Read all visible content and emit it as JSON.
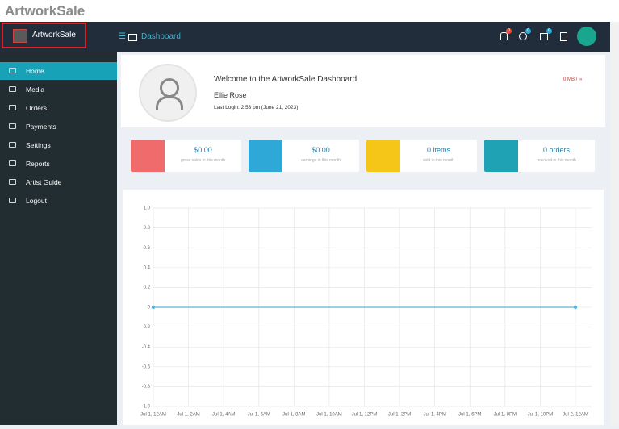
{
  "window_title": "ArtworkSale",
  "navbar": {
    "brand": "ArtworkSale",
    "breadcrumb": "Dashboard",
    "badges": [
      "0",
      "0",
      "0"
    ]
  },
  "sidebar": {
    "items": [
      "Home",
      "Media",
      "Orders",
      "Payments",
      "Settings",
      "Reports",
      "Artist Guide",
      "Logout"
    ]
  },
  "welcome": {
    "heading": "Welcome to the ArtworkSale Dashboard",
    "name": "Ellie Rose",
    "last_login": "Last Login: 2:53 pm (June 21, 2023)",
    "storage": "0 MB / ∞"
  },
  "stats": [
    {
      "value": "$0.00",
      "label": "gross sales in this month",
      "color": "#f06b6b"
    },
    {
      "value": "$0.00",
      "label": "earnings in this month",
      "color": "#2ea8d6"
    },
    {
      "value": "0 items",
      "label": "sold in this month",
      "color": "#f5c518"
    },
    {
      "value": "0 orders",
      "label": "received in this month",
      "color": "#1fa2b3"
    }
  ],
  "chart_data": {
    "type": "line",
    "categories": [
      "Jul 1, 12AM",
      "Jul 1, 2AM",
      "Jul 1, 4AM",
      "Jul 1, 6AM",
      "Jul 1, 8AM",
      "Jul 1, 10AM",
      "Jul 1, 12PM",
      "Jul 1, 2PM",
      "Jul 1, 4PM",
      "Jul 1, 6PM",
      "Jul 1, 8PM",
      "Jul 1, 10PM",
      "Jul 2, 12AM"
    ],
    "series": [
      {
        "color": "#5bb5d8",
        "values": [
          0,
          0,
          0,
          0,
          0,
          0,
          0,
          0,
          0,
          0,
          0,
          0,
          0
        ]
      }
    ],
    "ylim": [
      -1,
      1
    ],
    "yticks": [
      {
        "value": 1,
        "label": "1.0"
      },
      0.8,
      0.6,
      0.4,
      0.2,
      0,
      -0.2,
      -0.4,
      -0.6,
      -0.8,
      {
        "value": -1,
        "label": "-1.0"
      }
    ],
    "grid": true
  }
}
